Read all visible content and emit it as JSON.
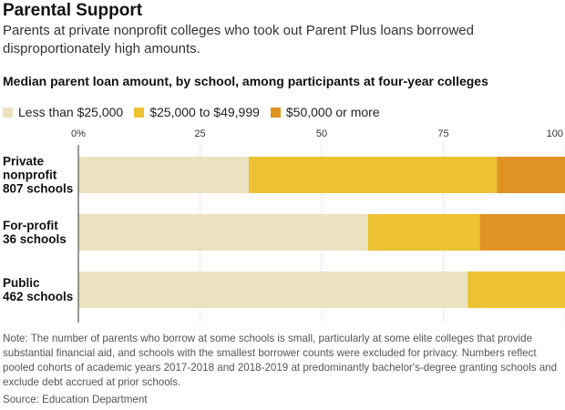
{
  "header": {
    "title": "Parental Support",
    "subtitle": "Parents at private nonprofit colleges who took out Parent Plus loans borrowed disproportionately high amounts."
  },
  "chart_data": {
    "type": "bar",
    "orientation": "horizontal",
    "stacked": true,
    "title": "Median parent loan amount, by school, among participants at four-year colleges",
    "categories": [
      {
        "name": "Private nonprofit",
        "count": "807 schools"
      },
      {
        "name": "For-profit",
        "count": "36 schools"
      },
      {
        "name": "Public",
        "count": "462 schools"
      }
    ],
    "series": [
      {
        "name": "Less than $25,000",
        "color": "#ede2bf",
        "values": [
          35,
          59.5,
          80
        ]
      },
      {
        "name": "$25,000 to $49,999",
        "color": "#ecc232",
        "values": [
          51,
          23,
          20.5
        ]
      },
      {
        "name": "$50,000 or more",
        "color": "#e09222",
        "values": [
          14,
          17.5,
          0.5
        ]
      }
    ],
    "xlim": [
      0,
      100
    ],
    "xticks": [
      {
        "value": 0,
        "label": "0%"
      },
      {
        "value": 25,
        "label": "25"
      },
      {
        "value": 50,
        "label": "50"
      },
      {
        "value": 75,
        "label": "75"
      },
      {
        "value": 100,
        "label": "100"
      }
    ],
    "legend_position": "top-left"
  },
  "footer": {
    "note": "Note: The number of parents who borrow at some schools is small, particularly at some elite colleges that provide substantial financial aid, and schools with the smallest borrower counts were excluded for privacy. Numbers reflect pooled cohorts of academic years 2017-2018 and 2018-2019 at predominantly bachelor's-degree granting schools and exclude debt accrued at prior schools.",
    "source": "Source: Education Department"
  }
}
